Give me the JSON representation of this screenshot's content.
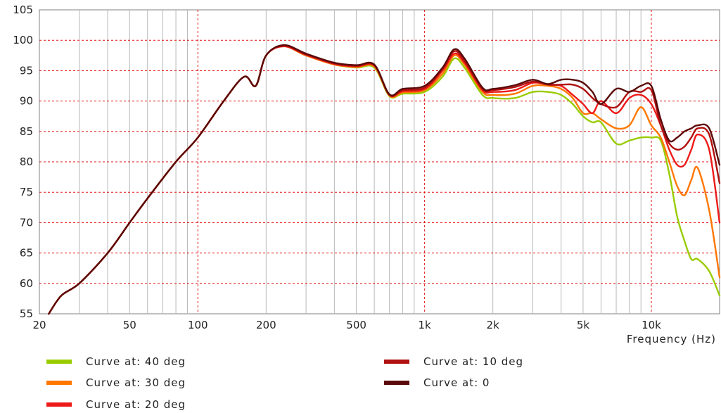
{
  "chart_data": {
    "type": "line",
    "xscale": "log",
    "xlim": [
      20,
      20000
    ],
    "ylim": [
      55,
      105
    ],
    "grid": true,
    "x_tick_labels": [
      "20",
      "50",
      "100",
      "200",
      "500",
      "1k",
      "2k",
      "5k",
      "10k"
    ],
    "x_tick_values": [
      20,
      50,
      100,
      200,
      500,
      1000,
      2000,
      5000,
      10000
    ],
    "y_ticks": [
      55,
      60,
      65,
      70,
      75,
      80,
      85,
      90,
      95,
      100,
      105
    ],
    "xlabel": "Frequency  (Hz)",
    "ylabel": "",
    "legend_position": "bottom",
    "series": [
      {
        "name": "Curve at: 40 deg",
        "color": "#99cc00",
        "x": [
          22,
          25,
          30,
          40,
          50,
          60,
          80,
          100,
          130,
          160,
          180,
          200,
          240,
          300,
          400,
          500,
          600,
          700,
          800,
          1000,
          1200,
          1350,
          1500,
          1800,
          2000,
          2500,
          3000,
          3500,
          4000,
          4500,
          5000,
          5500,
          6000,
          7000,
          8000,
          9000,
          10000,
          11000,
          12000,
          13000,
          14000,
          15000,
          16000,
          18000,
          20000
        ],
        "y": [
          55,
          58,
          60,
          65,
          70,
          74,
          80,
          84,
          90,
          94,
          92.5,
          97.5,
          99,
          97.5,
          96,
          95.5,
          95.5,
          90.8,
          91.2,
          91.5,
          94,
          97,
          95.5,
          91,
          90.5,
          90.5,
          91.5,
          91.5,
          91,
          89.5,
          87.5,
          86.5,
          86.5,
          83,
          83.5,
          84,
          84,
          83.5,
          78,
          71,
          67,
          64,
          64,
          62,
          58
        ]
      },
      {
        "name": "Curve at: 30 deg",
        "color": "#ff7700",
        "x": [
          22,
          25,
          30,
          40,
          50,
          60,
          80,
          100,
          130,
          160,
          180,
          200,
          240,
          300,
          400,
          500,
          600,
          700,
          800,
          1000,
          1200,
          1350,
          1500,
          1800,
          2000,
          2500,
          3000,
          3500,
          4000,
          4500,
          5000,
          5500,
          6000,
          7000,
          8000,
          9000,
          10000,
          11000,
          12000,
          13000,
          14000,
          15000,
          16000,
          18000,
          20000
        ],
        "y": [
          55,
          58,
          60,
          65,
          70,
          74,
          80,
          84,
          90,
          94,
          92.5,
          97.5,
          99,
          97.5,
          96,
          95.6,
          95.7,
          90.9,
          91.4,
          91.8,
          94.5,
          97.5,
          96,
          91.5,
          91,
          91.2,
          92.5,
          92.5,
          92,
          90.5,
          88,
          88,
          87,
          85.5,
          86,
          89,
          86,
          84,
          80,
          76,
          74.5,
          77,
          79,
          72,
          61
        ]
      },
      {
        "name": "Curve at: 20 deg",
        "color": "#ee1a1a",
        "x": [
          22,
          25,
          30,
          40,
          50,
          60,
          80,
          100,
          130,
          160,
          180,
          200,
          240,
          300,
          400,
          500,
          600,
          700,
          800,
          1000,
          1200,
          1350,
          1500,
          1800,
          2000,
          2500,
          3000,
          3500,
          4000,
          4500,
          5000,
          5500,
          6000,
          7000,
          8000,
          9000,
          10000,
          11000,
          12000,
          13000,
          14000,
          15000,
          16000,
          18000,
          20000
        ],
        "y": [
          55,
          58,
          60,
          65,
          70,
          74,
          80,
          84,
          90,
          94,
          92.5,
          97.5,
          99,
          97.6,
          96.1,
          95.7,
          95.8,
          91,
          91.6,
          92,
          95,
          97.8,
          96.3,
          91.8,
          91.5,
          91.8,
          93,
          92.7,
          92.5,
          91,
          89.5,
          88,
          90,
          88,
          90.5,
          91,
          89.5,
          86,
          82,
          79.5,
          79.5,
          82,
          84.5,
          82,
          70
        ]
      },
      {
        "name": "Curve at: 10 deg",
        "color": "#b01010",
        "x": [
          22,
          25,
          30,
          40,
          50,
          60,
          80,
          100,
          130,
          160,
          180,
          200,
          240,
          300,
          400,
          500,
          600,
          700,
          800,
          1000,
          1200,
          1350,
          1500,
          1800,
          2000,
          2500,
          3000,
          3500,
          4000,
          4500,
          5000,
          5500,
          6000,
          7000,
          8000,
          9000,
          10000,
          11000,
          12000,
          13000,
          14000,
          15000,
          16000,
          18000,
          20000
        ],
        "y": [
          55,
          58,
          60,
          65,
          70,
          74,
          80,
          84,
          90,
          94,
          92.5,
          97.5,
          99.1,
          97.7,
          96.2,
          95.8,
          95.9,
          91,
          91.8,
          92.2,
          95.3,
          98.2,
          96.6,
          92,
          91.8,
          92.3,
          93.2,
          92.7,
          92.7,
          92.7,
          92,
          90.5,
          89.5,
          89,
          91.5,
          91.5,
          91.8,
          86,
          83,
          82,
          82.5,
          84,
          85.5,
          84.5,
          76.5
        ]
      },
      {
        "name": "Curve at: 0",
        "color": "#5a0a0a",
        "x": [
          22,
          25,
          30,
          40,
          50,
          60,
          80,
          100,
          130,
          160,
          180,
          200,
          240,
          300,
          400,
          500,
          600,
          700,
          800,
          1000,
          1200,
          1350,
          1500,
          1800,
          2000,
          2500,
          3000,
          3500,
          4000,
          4500,
          5000,
          5500,
          6000,
          7000,
          8000,
          9000,
          10000,
          11000,
          12000,
          13000,
          14000,
          15000,
          16000,
          18000,
          20000
        ],
        "y": [
          55,
          58,
          60,
          65,
          70,
          74,
          80,
          84,
          90,
          94,
          92.5,
          97.5,
          99.2,
          97.8,
          96.3,
          95.9,
          96,
          91.1,
          92,
          92.5,
          95.5,
          98.5,
          97,
          92.2,
          92,
          92.6,
          93.5,
          92.8,
          93.5,
          93.5,
          93,
          91.5,
          89.5,
          92,
          91.5,
          92.5,
          92.5,
          87,
          83.5,
          84,
          85,
          85.5,
          86,
          85.5,
          79.5
        ]
      }
    ]
  }
}
